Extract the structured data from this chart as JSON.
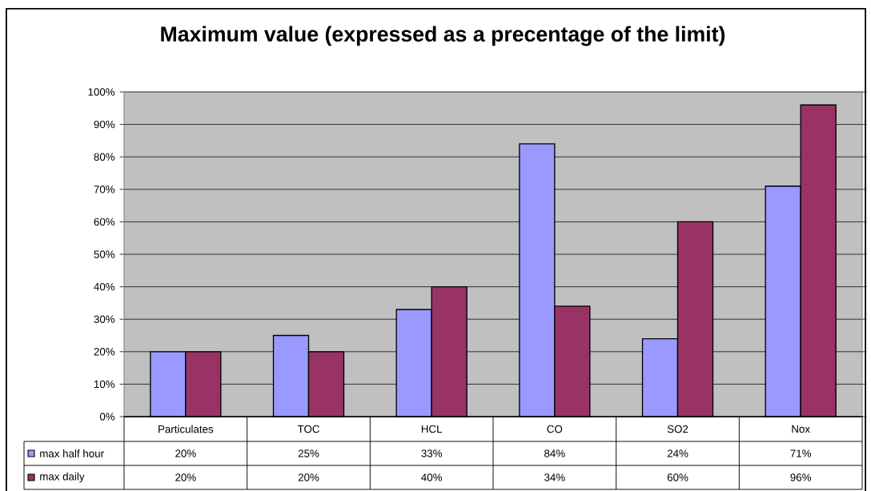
{
  "chart_data": {
    "type": "bar",
    "title": "Maximum value (expressed as a precentage of the limit)",
    "categories": [
      "Particulates",
      "TOC",
      "HCL",
      "CO",
      "SO2",
      "Nox"
    ],
    "series": [
      {
        "name": "max half hour",
        "color": "#9999ff",
        "values": [
          20,
          25,
          33,
          84,
          24,
          71
        ],
        "value_labels": [
          "20%",
          "25%",
          "33%",
          "84%",
          "24%",
          "71%"
        ]
      },
      {
        "name": "max daily",
        "color": "#993366",
        "values": [
          20,
          20,
          40,
          34,
          60,
          96
        ],
        "value_labels": [
          "20%",
          "20%",
          "40%",
          "34%",
          "60%",
          "96%"
        ]
      }
    ],
    "ylim": [
      0,
      100
    ],
    "yticks": [
      {
        "value": 0,
        "label": "0%"
      },
      {
        "value": 10,
        "label": "10%"
      },
      {
        "value": 20,
        "label": "20%"
      },
      {
        "value": 30,
        "label": "30%"
      },
      {
        "value": 40,
        "label": "40%"
      },
      {
        "value": 50,
        "label": "50%"
      },
      {
        "value": 60,
        "label": "60%"
      },
      {
        "value": 70,
        "label": "70%"
      },
      {
        "value": 80,
        "label": "80%"
      },
      {
        "value": 90,
        "label": "90%"
      },
      {
        "value": 100,
        "label": "100%"
      }
    ],
    "grid": "y",
    "legend": "bottom"
  }
}
